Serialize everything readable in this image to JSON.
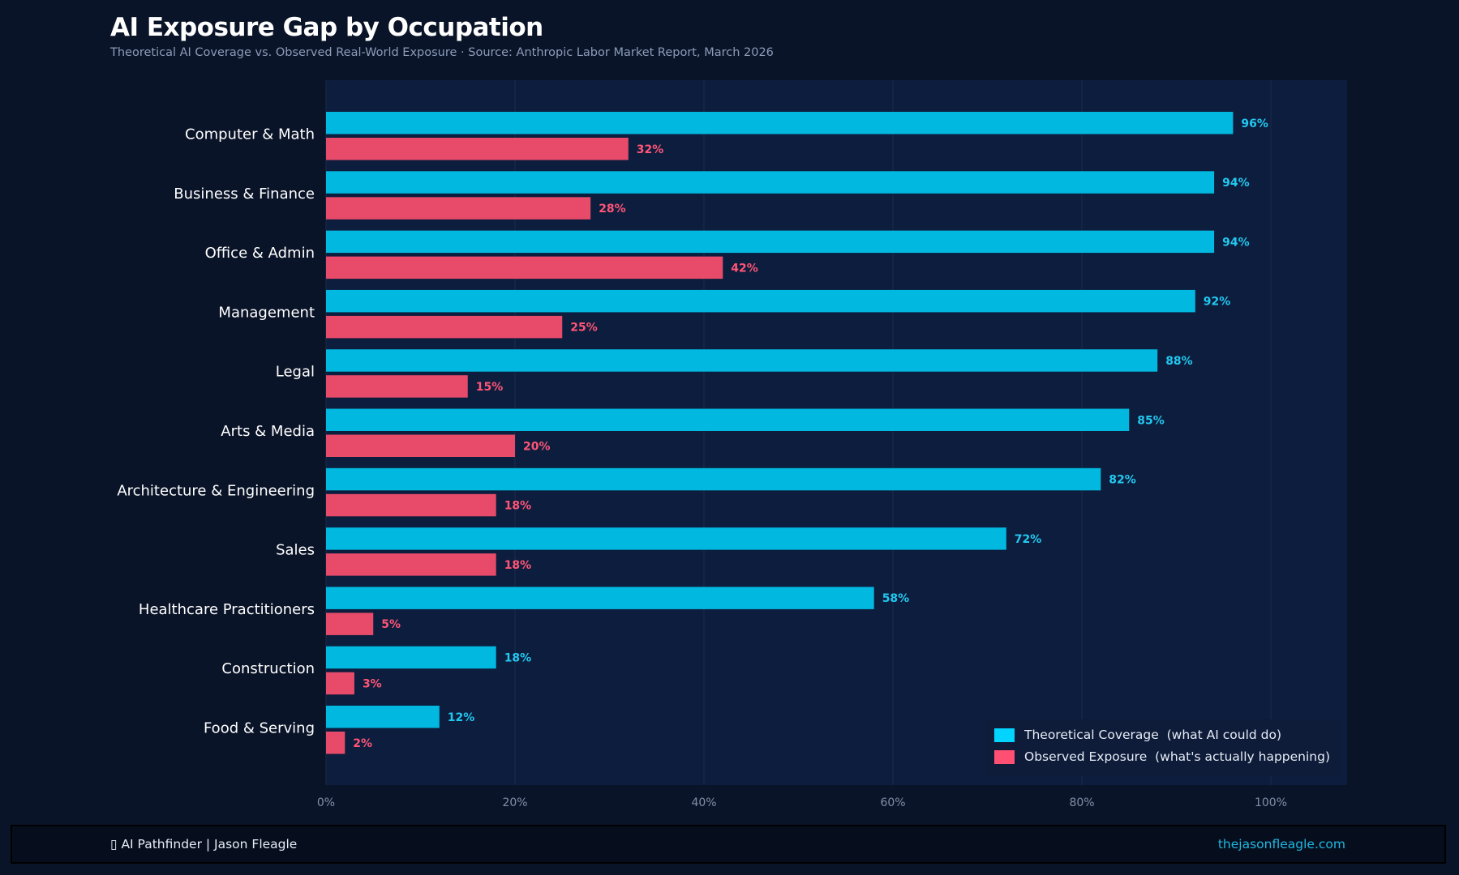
{
  "title": "AI Exposure Gap by Occupation",
  "subtitle": "Theoretical AI Coverage vs. Observed Real-World Exposure  ·  Source: Anthropic Labor Market Report, March 2026",
  "chart_data": {
    "type": "bar",
    "orientation": "horizontal",
    "categories": [
      "Computer & Math",
      "Business & Finance",
      "Office & Admin",
      "Management",
      "Legal",
      "Arts & Media",
      "Architecture & Engineering",
      "Sales",
      "Healthcare Practitioners",
      "Construction",
      "Food & Serving"
    ],
    "series": [
      {
        "name": "Theoretical Coverage  (what AI could do)",
        "color": "#00b8e0",
        "label_color": "#22c8f0",
        "values": [
          96,
          94,
          94,
          92,
          88,
          85,
          82,
          72,
          58,
          18,
          12
        ]
      },
      {
        "name": "Observed Exposure  (what's actually happening)",
        "color": "#e84a6a",
        "label_color": "#ff5577",
        "values": [
          32,
          28,
          42,
          25,
          15,
          20,
          18,
          18,
          5,
          3,
          2
        ]
      }
    ],
    "xlim": [
      0,
      108
    ],
    "xticks": [
      0,
      20,
      40,
      60,
      80,
      100
    ],
    "xtick_labels": [
      "0%",
      "20%",
      "40%",
      "60%",
      "80%",
      "100%"
    ],
    "value_suffix": "%",
    "grid": "vertical",
    "legend": "bottom-right"
  },
  "footer": {
    "left": "▯ AI Pathfinder | Jason Fleagle",
    "right": "thejasonfleagle.com"
  }
}
